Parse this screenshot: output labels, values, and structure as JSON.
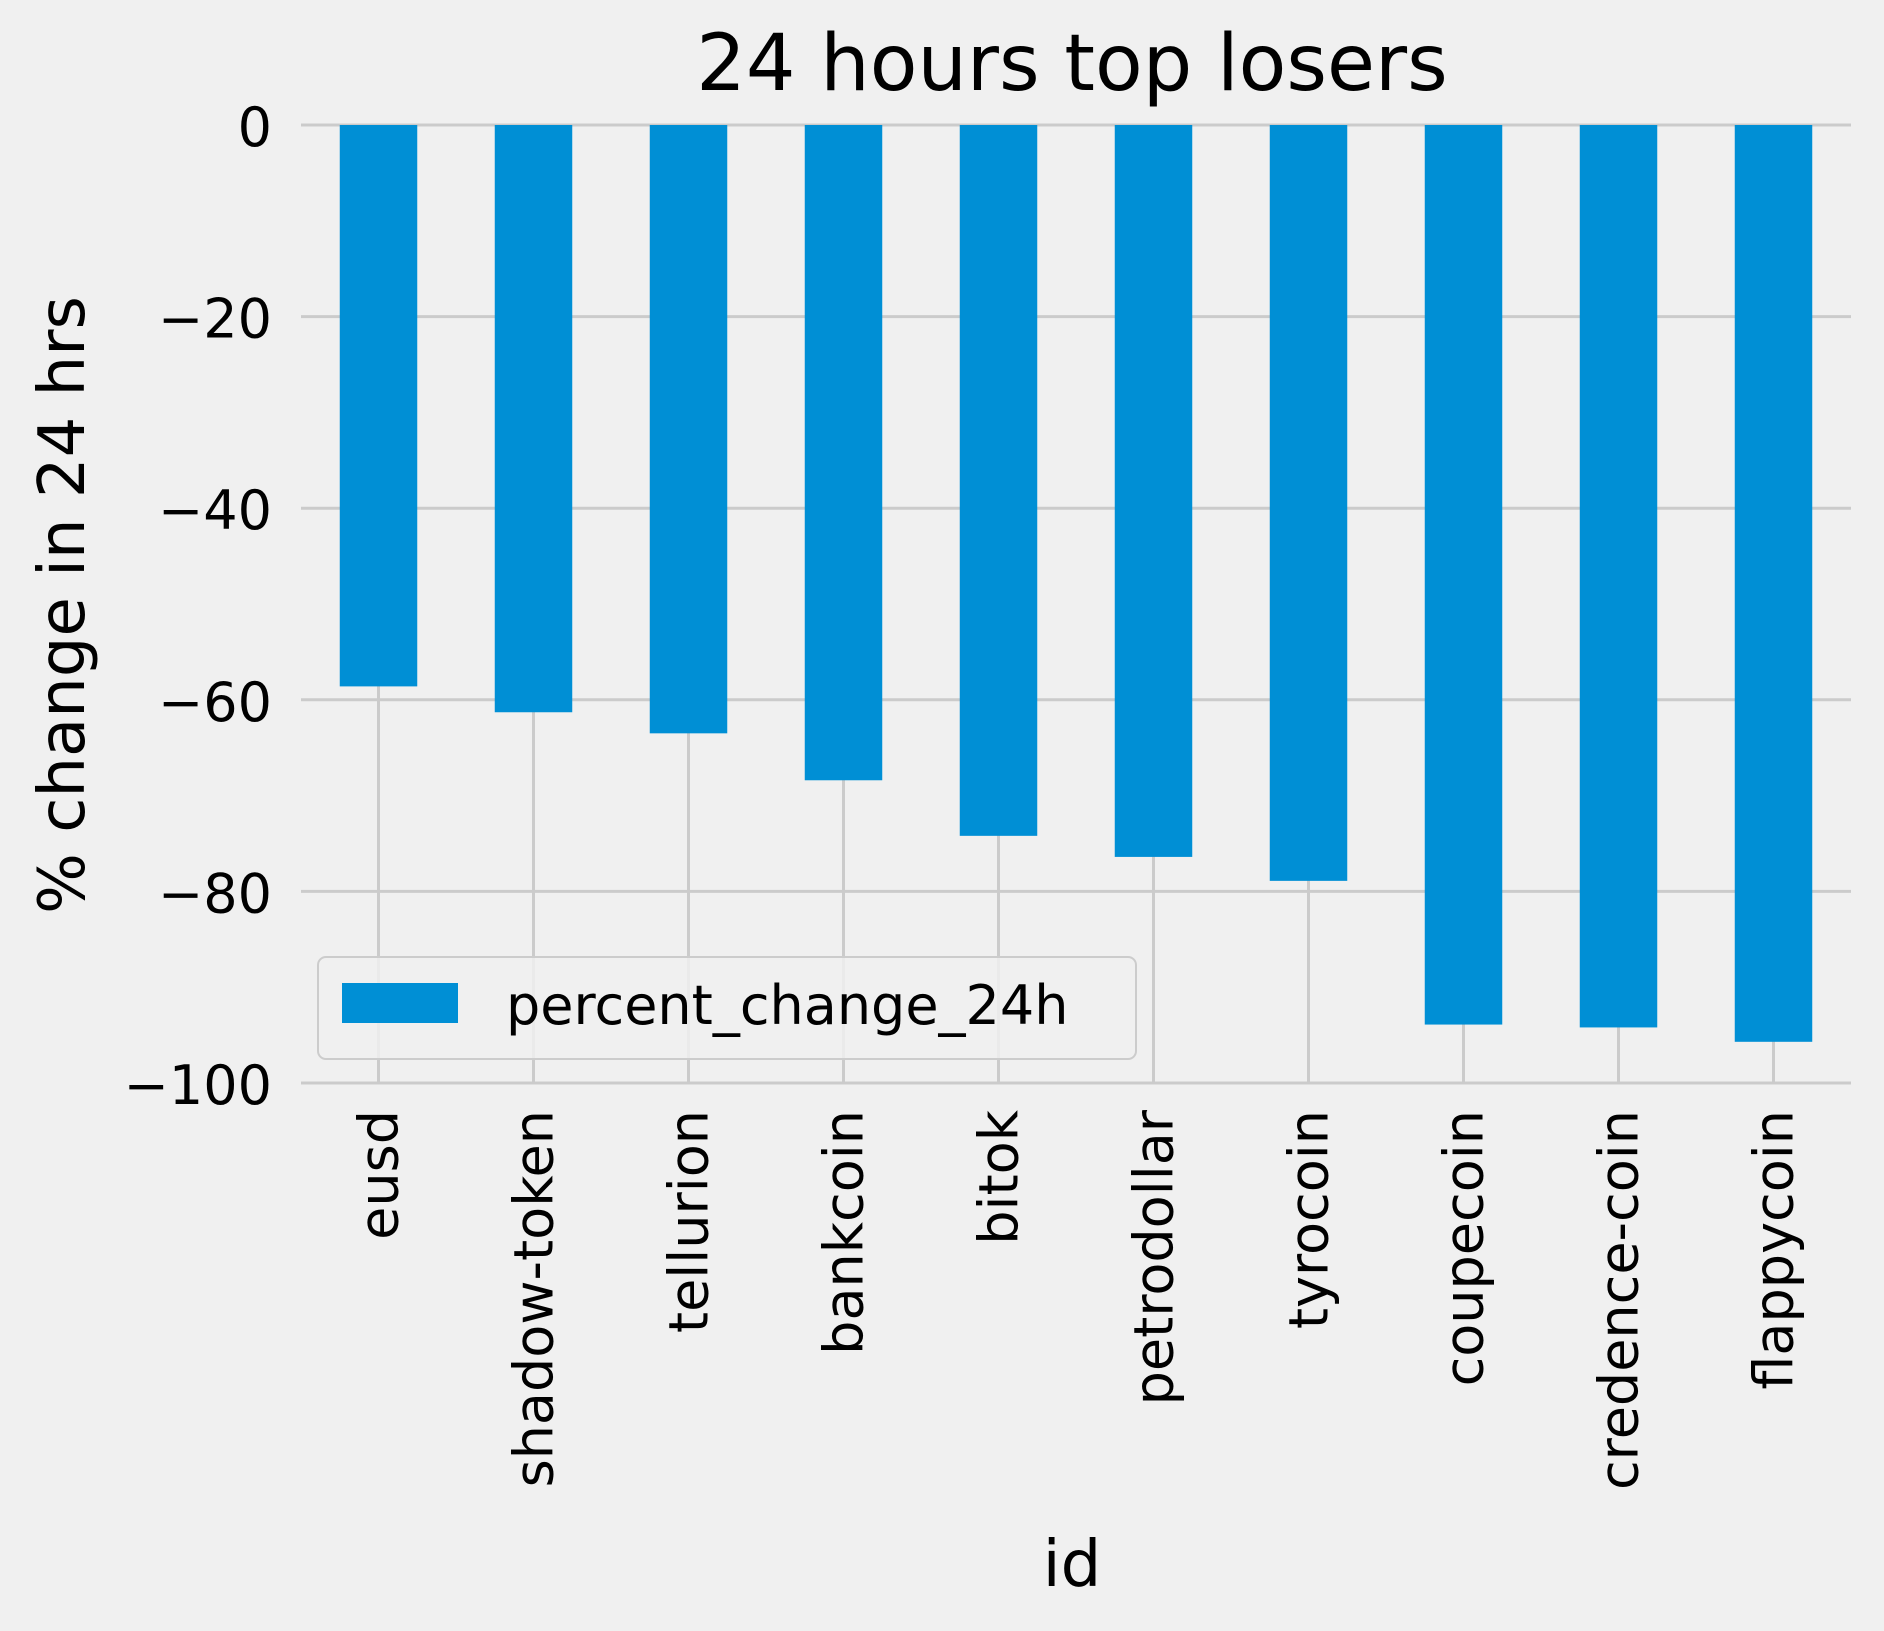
{
  "colors": {
    "background": "#f0f0f0",
    "bar": "#008fd5",
    "grid": "#cbcbcb",
    "legend_border": "#cccccc"
  },
  "chart_data": {
    "type": "bar",
    "title": "24 hours top losers",
    "xlabel": "id",
    "ylabel": "% change in 24 hrs",
    "categories": [
      "eusd",
      "shadow-token",
      "tellurion",
      "bankcoin",
      "bitok",
      "petrodollar",
      "tyrocoin",
      "coupecoin",
      "credence-coin",
      "flappycoin"
    ],
    "series": [
      {
        "name": "percent_change_24h",
        "values": [
          -58.6,
          -61.3,
          -63.5,
          -68.4,
          -74.2,
          -76.4,
          -78.9,
          -93.9,
          -94.2,
          -95.7
        ]
      }
    ],
    "ylim": [
      -100,
      0
    ],
    "yticks": [
      0,
      -20,
      -40,
      -60,
      -80,
      -100
    ],
    "ytick_labels": [
      "0",
      "−20",
      "−40",
      "−60",
      "−80",
      "−100"
    ],
    "grid": true,
    "legend_position": "lower-left"
  }
}
